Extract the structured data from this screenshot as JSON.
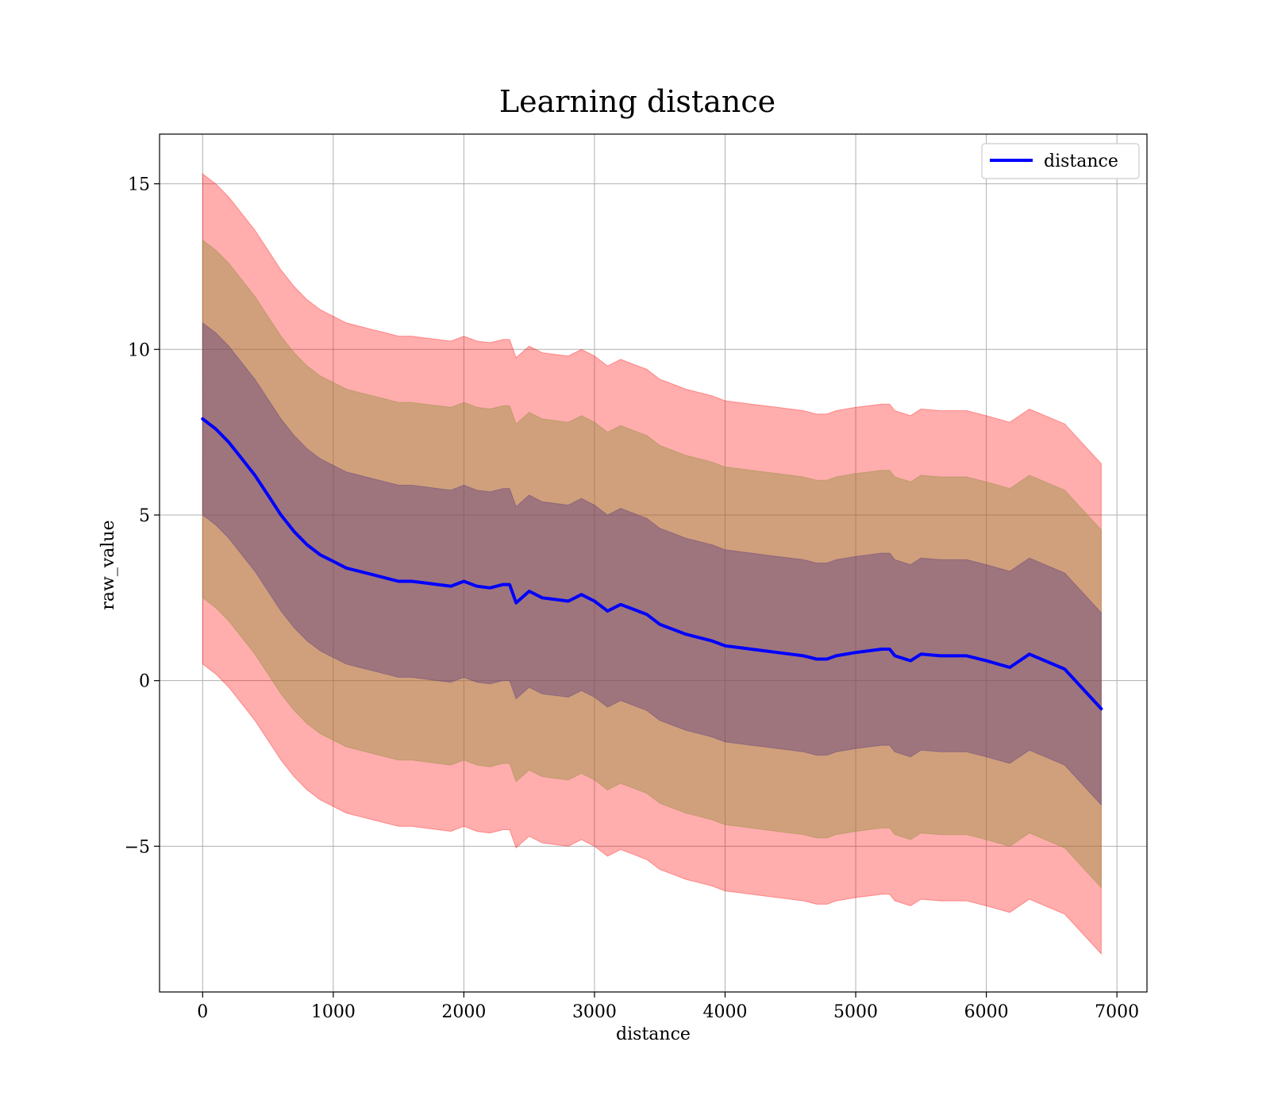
{
  "chart_data": {
    "type": "line",
    "title": "Learning distance",
    "xlabel": "distance",
    "ylabel": "raw_value",
    "xlim": [
      -330,
      7230
    ],
    "ylim": [
      -9.4,
      16.5
    ],
    "xticks": [
      0,
      1000,
      2000,
      3000,
      4000,
      5000,
      6000,
      7000
    ],
    "xtick_labels": [
      "0",
      "1000",
      "2000",
      "3000",
      "4000",
      "5000",
      "6000",
      "7000"
    ],
    "yticks": [
      -5,
      0,
      5,
      10,
      15
    ],
    "ytick_labels": [
      "−5",
      "0",
      "5",
      "10",
      "15"
    ],
    "grid": true,
    "legend": {
      "position": "top-right",
      "entries": [
        {
          "name": "distance",
          "color": "#0000ff"
        }
      ]
    },
    "colors": {
      "mean_line": "#0000ff",
      "band_outer": "#ff0000",
      "band_middle": "#8f8f3a",
      "band_inner": "#5a3a7e",
      "grid": "#b0b0b0"
    },
    "band_half_widths": {
      "inner": 2.9,
      "middle": 5.4,
      "outer": 7.4
    },
    "x": [
      0,
      100,
      200,
      300,
      400,
      500,
      600,
      700,
      800,
      900,
      1000,
      1100,
      1200,
      1300,
      1400,
      1500,
      1600,
      1700,
      1800,
      1900,
      2000,
      2100,
      2200,
      2300,
      2350,
      2400,
      2500,
      2600,
      2700,
      2800,
      2900,
      3000,
      3100,
      3200,
      3300,
      3400,
      3500,
      3600,
      3700,
      3800,
      3900,
      4000,
      4100,
      4200,
      4300,
      4400,
      4500,
      4600,
      4700,
      4780,
      4850,
      5000,
      5100,
      5200,
      5260,
      5300,
      5420,
      5500,
      5650,
      5850,
      6000,
      6180,
      6330,
      6600,
      6880
    ],
    "series": [
      {
        "name": "distance",
        "values": [
          7.9,
          7.6,
          7.2,
          6.7,
          6.2,
          5.6,
          5.0,
          4.5,
          4.1,
          3.8,
          3.6,
          3.4,
          3.3,
          3.2,
          3.1,
          3.0,
          3.0,
          2.95,
          2.9,
          2.85,
          3.0,
          2.85,
          2.8,
          2.9,
          2.9,
          2.35,
          2.7,
          2.5,
          2.45,
          2.4,
          2.6,
          2.4,
          2.1,
          2.3,
          2.15,
          2.0,
          1.7,
          1.55,
          1.4,
          1.3,
          1.2,
          1.05,
          1.0,
          0.95,
          0.9,
          0.85,
          0.8,
          0.75,
          0.65,
          0.65,
          0.75,
          0.85,
          0.9,
          0.95,
          0.95,
          0.75,
          0.6,
          0.8,
          0.75,
          0.75,
          0.6,
          0.4,
          0.8,
          0.35,
          -0.85
        ]
      }
    ]
  }
}
